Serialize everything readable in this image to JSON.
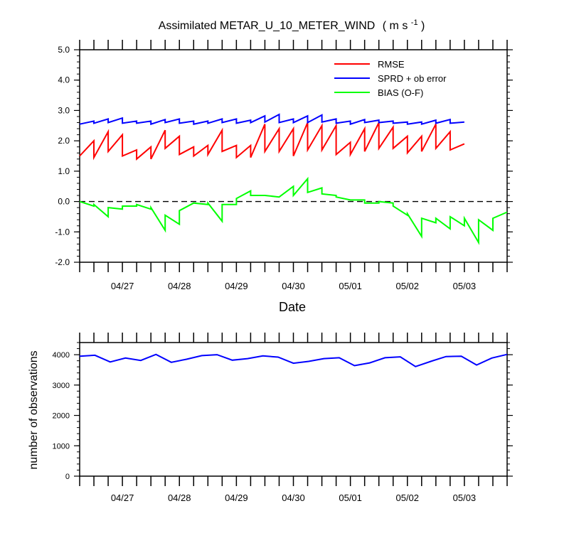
{
  "chart_data": [
    {
      "type": "line",
      "title": "Assimilated METAR_U_10_METER_WIND",
      "title_units": "( m s",
      "title_units_sup": "-1",
      "title_units_close": " )",
      "xlabel": "Date",
      "ylabel": "",
      "ylim": [
        -2.0,
        5.0
      ],
      "yticks": [
        "-2.0",
        "-1.0",
        "0.0",
        "1.0",
        "2.0",
        "3.0",
        "4.0",
        "5.0"
      ],
      "xlim": [
        "04/26 06Z",
        "05/03 12Z"
      ],
      "xticks": [
        "04/27",
        "04/28",
        "04/29",
        "04/30",
        "05/01",
        "05/02",
        "05/03"
      ],
      "zero_line": true,
      "legend_position": "top-right",
      "series": [
        {
          "name": "RMSE",
          "color": "#ff0000",
          "values": [
            [
              [
                0.0,
                1.5
              ],
              [
                0.5,
                2.0
              ]
            ],
            [
              [
                0.5,
                1.45
              ],
              [
                1.0,
                2.3
              ]
            ],
            [
              [
                1.0,
                1.65
              ],
              [
                1.5,
                2.2
              ]
            ],
            [
              [
                1.5,
                1.5
              ],
              [
                2.0,
                1.7
              ]
            ],
            [
              [
                2.0,
                1.4
              ],
              [
                2.5,
                1.8
              ]
            ],
            [
              [
                2.5,
                1.4
              ],
              [
                3.0,
                2.35
              ]
            ],
            [
              [
                3.0,
                1.75
              ],
              [
                3.5,
                2.15
              ]
            ],
            [
              [
                3.5,
                1.55
              ],
              [
                4.0,
                1.8
              ]
            ],
            [
              [
                4.0,
                1.5
              ],
              [
                4.5,
                1.85
              ]
            ],
            [
              [
                4.5,
                1.55
              ],
              [
                5.0,
                2.35
              ]
            ],
            [
              [
                5.0,
                1.65
              ],
              [
                5.5,
                1.85
              ]
            ],
            [
              [
                5.5,
                1.45
              ],
              [
                6.0,
                1.85
              ]
            ],
            [
              [
                6.0,
                1.45
              ],
              [
                6.5,
                2.55
              ]
            ],
            [
              [
                6.5,
                1.65
              ],
              [
                7.0,
                2.4
              ]
            ],
            [
              [
                7.0,
                1.65
              ],
              [
                7.5,
                2.4
              ]
            ],
            [
              [
                7.5,
                1.5
              ],
              [
                8.0,
                2.6
              ]
            ],
            [
              [
                8.0,
                1.7
              ],
              [
                8.5,
                2.5
              ]
            ],
            [
              [
                8.5,
                1.7
              ],
              [
                9.0,
                2.5
              ]
            ],
            [
              [
                9.0,
                1.55
              ],
              [
                9.5,
                1.95
              ]
            ],
            [
              [
                9.5,
                1.55
              ],
              [
                10.0,
                2.4
              ]
            ],
            [
              [
                10.0,
                1.65
              ],
              [
                10.5,
                2.6
              ]
            ],
            [
              [
                10.5,
                1.75
              ],
              [
                11.0,
                2.45
              ]
            ],
            [
              [
                11.0,
                1.75
              ],
              [
                11.5,
                2.15
              ]
            ],
            [
              [
                11.5,
                1.6
              ],
              [
                12.0,
                2.15
              ]
            ],
            [
              [
                12.0,
                1.65
              ],
              [
                12.5,
                2.55
              ]
            ],
            [
              [
                12.5,
                1.75
              ],
              [
                13.0,
                2.3
              ]
            ],
            [
              [
                13.0,
                1.7
              ],
              [
                13.5,
                1.9
              ]
            ]
          ]
        },
        {
          "name": "SPRD + ob error",
          "color": "#0000ff",
          "values": [
            [
              [
                0.0,
                2.55
              ],
              [
                0.5,
                2.65
              ]
            ],
            [
              [
                0.5,
                2.58
              ],
              [
                1.0,
                2.72
              ]
            ],
            [
              [
                1.0,
                2.6
              ],
              [
                1.5,
                2.75
              ]
            ],
            [
              [
                1.5,
                2.58
              ],
              [
                2.0,
                2.65
              ]
            ],
            [
              [
                2.0,
                2.58
              ],
              [
                2.5,
                2.65
              ]
            ],
            [
              [
                2.5,
                2.55
              ],
              [
                3.0,
                2.7
              ]
            ],
            [
              [
                3.0,
                2.6
              ],
              [
                3.5,
                2.72
              ]
            ],
            [
              [
                3.5,
                2.58
              ],
              [
                4.0,
                2.65
              ]
            ],
            [
              [
                4.0,
                2.55
              ],
              [
                4.5,
                2.65
              ]
            ],
            [
              [
                4.5,
                2.58
              ],
              [
                5.0,
                2.72
              ]
            ],
            [
              [
                5.0,
                2.6
              ],
              [
                5.5,
                2.72
              ]
            ],
            [
              [
                5.5,
                2.58
              ],
              [
                6.0,
                2.68
              ]
            ],
            [
              [
                6.0,
                2.6
              ],
              [
                6.5,
                2.82
              ]
            ],
            [
              [
                6.5,
                2.62
              ],
              [
                7.0,
                2.87
              ]
            ],
            [
              [
                7.0,
                2.6
              ],
              [
                7.5,
                2.72
              ]
            ],
            [
              [
                7.5,
                2.6
              ],
              [
                8.0,
                2.82
              ]
            ],
            [
              [
                8.0,
                2.6
              ],
              [
                8.5,
                2.85
              ]
            ],
            [
              [
                8.5,
                2.62
              ],
              [
                9.0,
                2.72
              ]
            ],
            [
              [
                9.0,
                2.58
              ],
              [
                9.5,
                2.65
              ]
            ],
            [
              [
                9.5,
                2.55
              ],
              [
                10.0,
                2.7
              ]
            ],
            [
              [
                10.0,
                2.6
              ],
              [
                10.5,
                2.68
              ]
            ],
            [
              [
                10.5,
                2.6
              ],
              [
                11.0,
                2.65
              ]
            ],
            [
              [
                11.0,
                2.58
              ],
              [
                11.5,
                2.62
              ]
            ],
            [
              [
                11.5,
                2.55
              ],
              [
                12.0,
                2.62
              ]
            ],
            [
              [
                12.0,
                2.55
              ],
              [
                12.5,
                2.68
              ]
            ],
            [
              [
                12.5,
                2.58
              ],
              [
                13.0,
                2.7
              ]
            ],
            [
              [
                13.0,
                2.58
              ],
              [
                13.5,
                2.62
              ]
            ]
          ]
        },
        {
          "name": "BIAS (O-F)",
          "color": "#00ff00",
          "values": [
            [
              [
                0.0,
                0.0
              ],
              [
                0.5,
                -0.15
              ]
            ],
            [
              [
                0.5,
                -0.1
              ],
              [
                1.0,
                -0.5
              ]
            ],
            [
              [
                1.0,
                -0.2
              ],
              [
                1.5,
                -0.25
              ]
            ],
            [
              [
                1.5,
                -0.15
              ],
              [
                2.0,
                -0.15
              ]
            ],
            [
              [
                2.0,
                -0.1
              ],
              [
                2.5,
                -0.25
              ]
            ],
            [
              [
                2.5,
                -0.2
              ],
              [
                3.0,
                -0.95
              ]
            ],
            [
              [
                3.0,
                -0.45
              ],
              [
                3.5,
                -0.75
              ]
            ],
            [
              [
                3.5,
                -0.3
              ],
              [
                4.0,
                -0.05
              ]
            ],
            [
              [
                4.0,
                -0.05
              ],
              [
                4.5,
                -0.1
              ]
            ],
            [
              [
                4.5,
                -0.05
              ],
              [
                5.0,
                -0.65
              ]
            ],
            [
              [
                5.0,
                -0.1
              ],
              [
                5.5,
                -0.1
              ]
            ],
            [
              [
                5.5,
                0.1
              ],
              [
                6.0,
                0.35
              ]
            ],
            [
              [
                6.0,
                0.2
              ],
              [
                6.5,
                0.2
              ]
            ],
            [
              [
                6.5,
                0.2
              ],
              [
                7.0,
                0.15
              ]
            ],
            [
              [
                7.0,
                0.15
              ],
              [
                7.5,
                0.5
              ]
            ],
            [
              [
                7.5,
                0.2
              ],
              [
                8.0,
                0.75
              ]
            ],
            [
              [
                8.0,
                0.3
              ],
              [
                8.5,
                0.45
              ]
            ],
            [
              [
                8.5,
                0.25
              ],
              [
                9.0,
                0.2
              ]
            ],
            [
              [
                9.0,
                0.15
              ],
              [
                9.5,
                0.05
              ]
            ],
            [
              [
                9.5,
                0.05
              ],
              [
                10.0,
                0.05
              ]
            ],
            [
              [
                10.0,
                -0.05
              ],
              [
                10.5,
                -0.05
              ]
            ],
            [
              [
                10.5,
                0.0
              ],
              [
                11.0,
                -0.05
              ]
            ],
            [
              [
                11.0,
                -0.15
              ],
              [
                11.5,
                -0.45
              ]
            ],
            [
              [
                11.5,
                -0.4
              ],
              [
                12.0,
                -1.15
              ]
            ],
            [
              [
                12.0,
                -0.55
              ],
              [
                12.5,
                -0.7
              ]
            ],
            [
              [
                12.5,
                -0.55
              ],
              [
                13.0,
                -0.9
              ]
            ],
            [
              [
                13.0,
                -0.5
              ],
              [
                13.5,
                -0.8
              ]
            ],
            [
              [
                13.5,
                -0.55
              ],
              [
                14.0,
                -1.35
              ]
            ],
            [
              [
                14.0,
                -0.6
              ],
              [
                14.5,
                -0.95
              ]
            ],
            [
              [
                14.5,
                -0.55
              ],
              [
                15.0,
                -0.35
              ]
            ]
          ]
        }
      ]
    },
    {
      "type": "line",
      "title": "",
      "xlabel": "",
      "ylabel": "number of observations",
      "ylim": [
        0,
        4400
      ],
      "yticks": [
        "0",
        "1000",
        "2000",
        "3000",
        "4000"
      ],
      "xticks": [
        "04/27",
        "04/28",
        "04/29",
        "04/30",
        "05/01",
        "05/02",
        "05/03"
      ],
      "series": [
        {
          "name": "",
          "color": "#0000ff",
          "values": [
            3950,
            3980,
            3760,
            3890,
            3810,
            4010,
            3750,
            3850,
            3970,
            4000,
            3820,
            3870,
            3960,
            3920,
            3720,
            3780,
            3870,
            3900,
            3640,
            3730,
            3900,
            3930,
            3610,
            3780,
            3940,
            3950,
            3660,
            3890,
            4010
          ]
        }
      ]
    }
  ]
}
